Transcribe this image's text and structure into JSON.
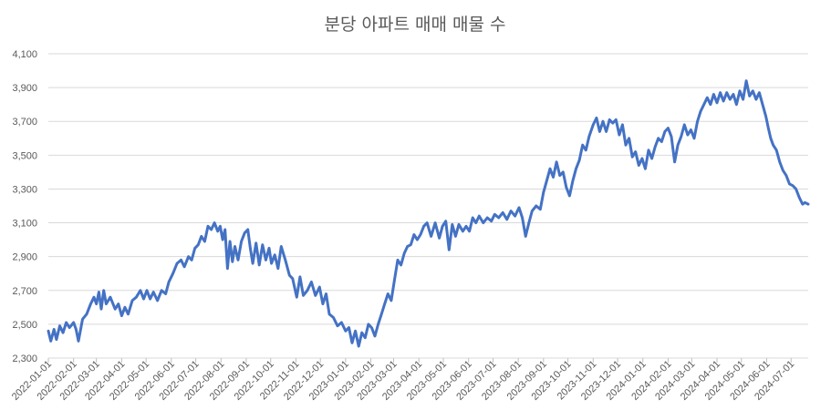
{
  "chart_data": {
    "type": "line",
    "title": "분당 아파트 매매 매물 수",
    "xlabel": "",
    "ylabel": "",
    "ylim": [
      2300,
      4100
    ],
    "y_ticks": [
      2300,
      2500,
      2700,
      2900,
      3100,
      3300,
      3500,
      3700,
      3900,
      4100
    ],
    "y_tick_labels": [
      "2,300",
      "2,500",
      "2,700",
      "2,900",
      "3,100",
      "3,300",
      "3,500",
      "3,700",
      "3,900",
      "4,100"
    ],
    "xlim": [
      "2022-01-01",
      "2024-07-22"
    ],
    "x_ticks": [
      "2022-01-01",
      "2022-02-01",
      "2022-03-01",
      "2022-04-01",
      "2022-05-01",
      "2022-06-01",
      "2022-07-01",
      "2022-08-01",
      "2022-09-01",
      "2022-10-01",
      "2022-11-01",
      "2022-12-01",
      "2023-01-01",
      "2023-02-01",
      "2023-03-01",
      "2023-04-01",
      "2023-05-01",
      "2023-06-01",
      "2023-07-01",
      "2023-08-01",
      "2023-09-01",
      "2023-10-01",
      "2023-11-01",
      "2023-12-01",
      "2024-01-01",
      "2024-02-01",
      "2024-03-01",
      "2024-04-01",
      "2024-05-01",
      "2024-06-01",
      "2024-07-01"
    ],
    "grid": true,
    "legend": "none",
    "series": [
      {
        "color": "#4472c4",
        "points": [
          [
            "2022-01-01",
            2460
          ],
          [
            "2022-01-04",
            2400
          ],
          [
            "2022-01-08",
            2470
          ],
          [
            "2022-01-11",
            2410
          ],
          [
            "2022-01-15",
            2490
          ],
          [
            "2022-01-19",
            2450
          ],
          [
            "2022-01-23",
            2510
          ],
          [
            "2022-01-27",
            2480
          ],
          [
            "2022-02-01",
            2510
          ],
          [
            "2022-02-04",
            2470
          ],
          [
            "2022-02-07",
            2400
          ],
          [
            "2022-02-12",
            2530
          ],
          [
            "2022-02-17",
            2560
          ],
          [
            "2022-02-22",
            2620
          ],
          [
            "2022-02-26",
            2660
          ],
          [
            "2022-03-01",
            2620
          ],
          [
            "2022-03-04",
            2690
          ],
          [
            "2022-03-07",
            2590
          ],
          [
            "2022-03-10",
            2700
          ],
          [
            "2022-03-13",
            2620
          ],
          [
            "2022-03-18",
            2660
          ],
          [
            "2022-03-24",
            2590
          ],
          [
            "2022-03-28",
            2620
          ],
          [
            "2022-04-01",
            2550
          ],
          [
            "2022-04-05",
            2600
          ],
          [
            "2022-04-09",
            2560
          ],
          [
            "2022-04-14",
            2640
          ],
          [
            "2022-04-19",
            2660
          ],
          [
            "2022-04-24",
            2700
          ],
          [
            "2022-04-28",
            2650
          ],
          [
            "2022-05-02",
            2700
          ],
          [
            "2022-05-06",
            2650
          ],
          [
            "2022-05-10",
            2690
          ],
          [
            "2022-05-15",
            2640
          ],
          [
            "2022-05-20",
            2700
          ],
          [
            "2022-05-25",
            2680
          ],
          [
            "2022-05-29",
            2750
          ],
          [
            "2022-06-03",
            2800
          ],
          [
            "2022-06-08",
            2860
          ],
          [
            "2022-06-13",
            2880
          ],
          [
            "2022-06-17",
            2840
          ],
          [
            "2022-06-22",
            2900
          ],
          [
            "2022-06-26",
            2880
          ],
          [
            "2022-06-30",
            2950
          ],
          [
            "2022-07-04",
            2970
          ],
          [
            "2022-07-08",
            3020
          ],
          [
            "2022-07-12",
            2990
          ],
          [
            "2022-07-16",
            3080
          ],
          [
            "2022-07-20",
            3060
          ],
          [
            "2022-07-24",
            3100
          ],
          [
            "2022-07-28",
            3050
          ],
          [
            "2022-07-31",
            3080
          ],
          [
            "2022-08-03",
            3000
          ],
          [
            "2022-08-06",
            3060
          ],
          [
            "2022-08-09",
            2830
          ],
          [
            "2022-08-12",
            2990
          ],
          [
            "2022-08-15",
            2870
          ],
          [
            "2022-08-18",
            2960
          ],
          [
            "2022-08-22",
            2880
          ],
          [
            "2022-08-26",
            2990
          ],
          [
            "2022-08-30",
            3040
          ],
          [
            "2022-09-03",
            3060
          ],
          [
            "2022-09-06",
            2950
          ],
          [
            "2022-09-09",
            2860
          ],
          [
            "2022-09-13",
            2980
          ],
          [
            "2022-09-17",
            2850
          ],
          [
            "2022-09-21",
            2970
          ],
          [
            "2022-09-25",
            2880
          ],
          [
            "2022-09-29",
            2950
          ],
          [
            "2022-10-02",
            2860
          ],
          [
            "2022-10-06",
            2910
          ],
          [
            "2022-10-10",
            2830
          ],
          [
            "2022-10-14",
            2960
          ],
          [
            "2022-10-19",
            2880
          ],
          [
            "2022-10-24",
            2790
          ],
          [
            "2022-10-28",
            2770
          ],
          [
            "2022-11-02",
            2660
          ],
          [
            "2022-11-06",
            2780
          ],
          [
            "2022-11-10",
            2670
          ],
          [
            "2022-11-15",
            2700
          ],
          [
            "2022-11-20",
            2750
          ],
          [
            "2022-11-25",
            2670
          ],
          [
            "2022-11-30",
            2720
          ],
          [
            "2022-12-04",
            2620
          ],
          [
            "2022-12-08",
            2680
          ],
          [
            "2022-12-12",
            2560
          ],
          [
            "2022-12-17",
            2540
          ],
          [
            "2022-12-22",
            2490
          ],
          [
            "2022-12-27",
            2510
          ],
          [
            "2023-01-01",
            2460
          ],
          [
            "2023-01-05",
            2480
          ],
          [
            "2023-01-09",
            2390
          ],
          [
            "2023-01-13",
            2460
          ],
          [
            "2023-01-17",
            2370
          ],
          [
            "2023-01-21",
            2450
          ],
          [
            "2023-01-25",
            2420
          ],
          [
            "2023-01-29",
            2500
          ],
          [
            "2023-02-02",
            2480
          ],
          [
            "2023-02-06",
            2430
          ],
          [
            "2023-02-10",
            2500
          ],
          [
            "2023-02-14",
            2560
          ],
          [
            "2023-02-18",
            2620
          ],
          [
            "2023-02-22",
            2680
          ],
          [
            "2023-02-26",
            2640
          ],
          [
            "2023-03-02",
            2760
          ],
          [
            "2023-03-06",
            2880
          ],
          [
            "2023-03-10",
            2850
          ],
          [
            "2023-03-14",
            2920
          ],
          [
            "2023-03-18",
            2960
          ],
          [
            "2023-03-22",
            2970
          ],
          [
            "2023-03-26",
            3030
          ],
          [
            "2023-03-30",
            3000
          ],
          [
            "2023-04-03",
            3030
          ],
          [
            "2023-04-07",
            3080
          ],
          [
            "2023-04-11",
            3100
          ],
          [
            "2023-04-16",
            3020
          ],
          [
            "2023-04-21",
            3100
          ],
          [
            "2023-04-26",
            3010
          ],
          [
            "2023-04-30",
            3080
          ],
          [
            "2023-05-04",
            3110
          ],
          [
            "2023-05-08",
            2940
          ],
          [
            "2023-05-12",
            3090
          ],
          [
            "2023-05-16",
            3020
          ],
          [
            "2023-05-20",
            3090
          ],
          [
            "2023-05-25",
            3050
          ],
          [
            "2023-05-29",
            3080
          ],
          [
            "2023-06-02",
            3050
          ],
          [
            "2023-06-06",
            3130
          ],
          [
            "2023-06-10",
            3100
          ],
          [
            "2023-06-14",
            3140
          ],
          [
            "2023-06-19",
            3100
          ],
          [
            "2023-06-24",
            3130
          ],
          [
            "2023-06-29",
            3110
          ],
          [
            "2023-07-03",
            3150
          ],
          [
            "2023-07-08",
            3130
          ],
          [
            "2023-07-13",
            3160
          ],
          [
            "2023-07-18",
            3120
          ],
          [
            "2023-07-23",
            3170
          ],
          [
            "2023-07-28",
            3140
          ],
          [
            "2023-08-02",
            3190
          ],
          [
            "2023-08-06",
            3130
          ],
          [
            "2023-08-10",
            3020
          ],
          [
            "2023-08-14",
            3100
          ],
          [
            "2023-08-18",
            3170
          ],
          [
            "2023-08-23",
            3200
          ],
          [
            "2023-08-28",
            3180
          ],
          [
            "2023-09-01",
            3280
          ],
          [
            "2023-09-05",
            3350
          ],
          [
            "2023-09-09",
            3420
          ],
          [
            "2023-09-13",
            3370
          ],
          [
            "2023-09-17",
            3460
          ],
          [
            "2023-09-21",
            3380
          ],
          [
            "2023-09-25",
            3400
          ],
          [
            "2023-09-29",
            3310
          ],
          [
            "2023-10-03",
            3260
          ],
          [
            "2023-10-07",
            3350
          ],
          [
            "2023-10-11",
            3420
          ],
          [
            "2023-10-15",
            3470
          ],
          [
            "2023-10-19",
            3560
          ],
          [
            "2023-10-23",
            3530
          ],
          [
            "2023-10-27",
            3610
          ],
          [
            "2023-11-01",
            3680
          ],
          [
            "2023-11-05",
            3720
          ],
          [
            "2023-11-09",
            3640
          ],
          [
            "2023-11-13",
            3700
          ],
          [
            "2023-11-17",
            3640
          ],
          [
            "2023-11-21",
            3710
          ],
          [
            "2023-11-25",
            3690
          ],
          [
            "2023-11-29",
            3710
          ],
          [
            "2023-12-03",
            3620
          ],
          [
            "2023-12-07",
            3680
          ],
          [
            "2023-12-11",
            3560
          ],
          [
            "2023-12-15",
            3600
          ],
          [
            "2023-12-19",
            3490
          ],
          [
            "2023-12-23",
            3520
          ],
          [
            "2023-12-27",
            3440
          ],
          [
            "2023-12-31",
            3480
          ],
          [
            "2024-01-04",
            3420
          ],
          [
            "2024-01-08",
            3530
          ],
          [
            "2024-01-12",
            3480
          ],
          [
            "2024-01-16",
            3550
          ],
          [
            "2024-01-20",
            3600
          ],
          [
            "2024-01-24",
            3580
          ],
          [
            "2024-01-28",
            3640
          ],
          [
            "2024-02-01",
            3660
          ],
          [
            "2024-02-05",
            3610
          ],
          [
            "2024-02-09",
            3460
          ],
          [
            "2024-02-13",
            3560
          ],
          [
            "2024-02-17",
            3610
          ],
          [
            "2024-02-21",
            3680
          ],
          [
            "2024-02-25",
            3620
          ],
          [
            "2024-02-29",
            3650
          ],
          [
            "2024-03-04",
            3600
          ],
          [
            "2024-03-08",
            3700
          ],
          [
            "2024-03-12",
            3760
          ],
          [
            "2024-03-16",
            3800
          ],
          [
            "2024-03-20",
            3840
          ],
          [
            "2024-03-24",
            3800
          ],
          [
            "2024-03-28",
            3860
          ],
          [
            "2024-04-01",
            3810
          ],
          [
            "2024-04-05",
            3870
          ],
          [
            "2024-04-09",
            3820
          ],
          [
            "2024-04-13",
            3870
          ],
          [
            "2024-04-17",
            3830
          ],
          [
            "2024-04-21",
            3860
          ],
          [
            "2024-04-25",
            3800
          ],
          [
            "2024-04-29",
            3880
          ],
          [
            "2024-05-03",
            3830
          ],
          [
            "2024-05-07",
            3940
          ],
          [
            "2024-05-11",
            3850
          ],
          [
            "2024-05-15",
            3880
          ],
          [
            "2024-05-19",
            3830
          ],
          [
            "2024-05-23",
            3870
          ],
          [
            "2024-05-27",
            3800
          ],
          [
            "2024-05-31",
            3730
          ],
          [
            "2024-06-03",
            3660
          ],
          [
            "2024-06-06",
            3600
          ],
          [
            "2024-06-09",
            3560
          ],
          [
            "2024-06-13",
            3530
          ],
          [
            "2024-06-17",
            3460
          ],
          [
            "2024-06-21",
            3410
          ],
          [
            "2024-06-25",
            3380
          ],
          [
            "2024-06-29",
            3330
          ],
          [
            "2024-07-03",
            3320
          ],
          [
            "2024-07-07",
            3300
          ],
          [
            "2024-07-11",
            3250
          ],
          [
            "2024-07-15",
            3210
          ],
          [
            "2024-07-18",
            3220
          ],
          [
            "2024-07-22",
            3210
          ]
        ]
      }
    ]
  }
}
